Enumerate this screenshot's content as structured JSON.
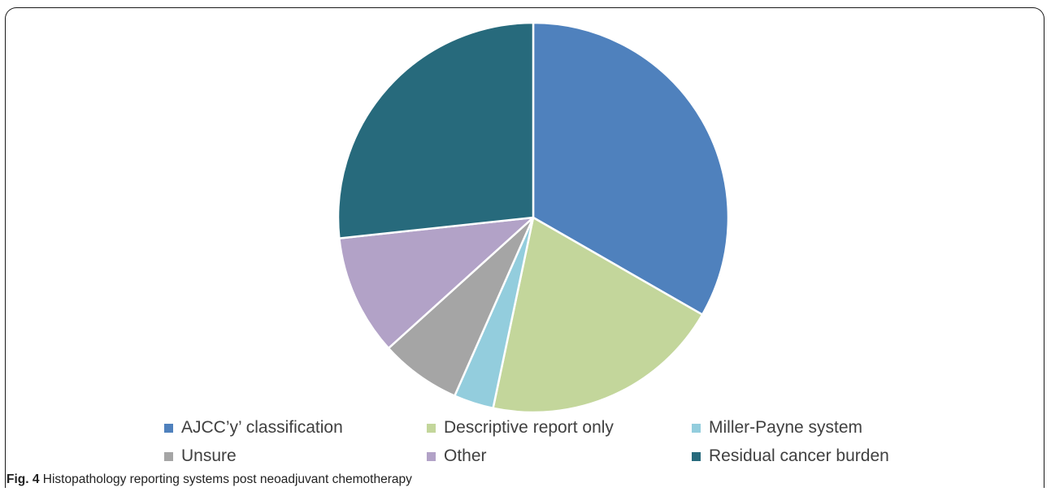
{
  "chart_data": {
    "type": "pie",
    "slices": [
      {
        "label": "AJCC’y’ classification",
        "value": 33.3,
        "color": "#4f81bd"
      },
      {
        "label": "Descriptive report only",
        "value": 20.0,
        "color": "#c3d69b"
      },
      {
        "label": "Miller-Payne system",
        "value": 3.3,
        "color": "#93cddd"
      },
      {
        "label": "Unsure",
        "value": 6.7,
        "color": "#a5a5a5"
      },
      {
        "label": "Other",
        "value": 10.0,
        "color": "#b2a2c7"
      },
      {
        "label": "Residual cancer burden",
        "value": 26.7,
        "color": "#276a7c"
      }
    ],
    "start_angle": "12 o'clock, clockwise",
    "legend_position": "bottom"
  },
  "caption": {
    "label": "Fig. 4",
    "text": "Histopathology reporting systems post neoadjuvant chemotherapy"
  }
}
